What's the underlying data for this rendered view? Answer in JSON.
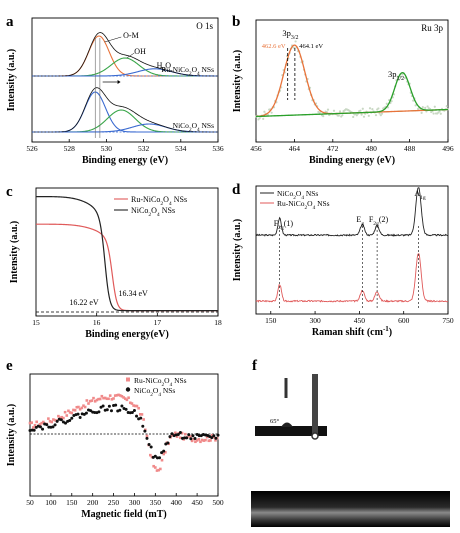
{
  "chart_data": [
    {
      "panel": "a",
      "type": "line",
      "annotation_top": "O 1s",
      "xlabel": "Binding energy (eV)",
      "ylabel": "Intensity (a.u.)",
      "xlim": [
        526,
        536
      ],
      "xticks": [
        "526",
        "528",
        "530",
        "532",
        "534",
        "536"
      ],
      "peak_labels": [
        "O-M",
        "OH",
        "H2O"
      ],
      "series_labels": [
        "Ru-NiCo2O4 NSs",
        "NiCo2O4 NSs"
      ],
      "series": [
        {
          "name": "Ru-NiCo2O4 NSs",
          "components": [
            {
              "center": 529.6,
              "height": 1.0,
              "width": 0.55,
              "color": "#e8733a"
            },
            {
              "center": 531.0,
              "height": 0.45,
              "width": 0.75,
              "color": "#3aa64a"
            },
            {
              "center": 532.6,
              "height": 0.18,
              "width": 0.9,
              "color": "#3a6ad0"
            }
          ]
        },
        {
          "name": "NiCo2O4 NSs",
          "components": [
            {
              "center": 529.4,
              "height": 1.0,
              "width": 0.55,
              "color": "#3a6ad0"
            },
            {
              "center": 530.8,
              "height": 0.55,
              "width": 0.75,
              "color": "#3aa64a"
            },
            {
              "center": 532.3,
              "height": 0.2,
              "width": 0.9,
              "color": "#3a6ad0"
            }
          ]
        }
      ]
    },
    {
      "panel": "b",
      "type": "line",
      "annotation_top": "Ru 3p",
      "xlabel": "Binding energy (eV)",
      "ylabel": "Intensity (a.u.)",
      "xlim": [
        456,
        496
      ],
      "xticks": [
        "456",
        "464",
        "472",
        "480",
        "488",
        "496"
      ],
      "peak_labels": [
        "3p3/2",
        "3p1/2"
      ],
      "value_labels": [
        "462.6 eV",
        "464.1 eV"
      ],
      "peaks": [
        {
          "center": 464.0,
          "height": 1.0,
          "width": 2.2,
          "color": "#e8733a"
        },
        {
          "center": 486.5,
          "height": 0.55,
          "width": 1.6,
          "color": "#2aa02a"
        }
      ]
    },
    {
      "panel": "c",
      "type": "line",
      "xlabel": "Binding energy(eV)",
      "ylabel": "Intensity (a.u.)",
      "xlim": [
        15,
        18
      ],
      "xticks": [
        "15",
        "16",
        "17",
        "18"
      ],
      "value_labels": [
        "16.22 eV",
        "16.34 eV"
      ],
      "series": [
        {
          "name": "Ru-NiCo2O4 NSs",
          "color": "#e05a5a",
          "edge": 16.34,
          "plateau": 0.72
        },
        {
          "name": "NiCo2O4 NSs",
          "color": "#222222",
          "edge": 16.22,
          "plateau": 0.95
        }
      ]
    },
    {
      "panel": "d",
      "type": "line",
      "xlabel": "Raman shift (cm-1)",
      "ylabel": "Intensity (a.u.)",
      "xlim": [
        100,
        750
      ],
      "xticks": [
        "150",
        "300",
        "450",
        "600",
        "750"
      ],
      "peak_labels": [
        "F2g(1)",
        "Eg",
        "F2g(2)",
        "A1g"
      ],
      "peak_positions": [
        180,
        460,
        510,
        650
      ],
      "series": [
        {
          "name": "NiCo2O4 NSs",
          "color": "#222222"
        },
        {
          "name": "Ru-NiCo2O4 NSs",
          "color": "#e05a5a"
        }
      ]
    },
    {
      "panel": "e",
      "type": "line",
      "xlabel": "Magnetic field (mT)",
      "ylabel": "Intensity (a.u.)",
      "xlim": [
        50,
        500
      ],
      "xticks": [
        "50",
        "100",
        "150",
        "200",
        "250",
        "300",
        "350",
        "400",
        "450",
        "500"
      ],
      "series": [
        {
          "name": "Ru-NiCo2O4 NSs",
          "color": "#f08a8a",
          "amplitude": 1.0
        },
        {
          "name": "NiCo2O4 NSs",
          "color": "#111111",
          "amplitude": 0.7
        }
      ]
    },
    {
      "panel": "f",
      "type": "image",
      "value_labels": [
        "65°"
      ]
    }
  ],
  "panel_letters": [
    "a",
    "b",
    "c",
    "d",
    "e",
    "f"
  ]
}
